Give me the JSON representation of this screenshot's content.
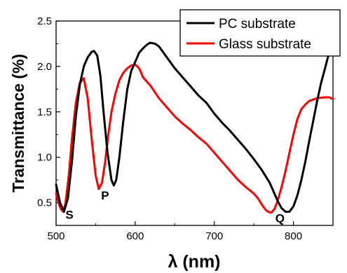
{
  "chart_data": {
    "type": "line",
    "xlabel": "λ (nm)",
    "ylabel": "Transmittance (%)",
    "xlim": [
      500,
      850
    ],
    "ylim": [
      0.25,
      2.5
    ],
    "xticks": [
      "500",
      "600",
      "700",
      "800"
    ],
    "yticks": [
      "0.5",
      "1.0",
      "1.5",
      "2.0",
      "2.5"
    ],
    "legend_position": "top-right",
    "series": [
      {
        "name": "PC substrate",
        "color": "#000000",
        "x": [
          500,
          505,
          510,
          515,
          520,
          525,
          530,
          535,
          540,
          545,
          548,
          552,
          556,
          560,
          565,
          570,
          573,
          576,
          580,
          585,
          590,
          595,
          600,
          605,
          610,
          615,
          619,
          625,
          630,
          640,
          650,
          660,
          670,
          680,
          690,
          700,
          710,
          720,
          730,
          740,
          750,
          760,
          770,
          775,
          780,
          785,
          790,
          795,
          800,
          805,
          810,
          815,
          820,
          825,
          830,
          835,
          840,
          845,
          850
        ],
        "y": [
          0.7,
          0.5,
          0.4,
          0.55,
          0.95,
          1.45,
          1.8,
          2.0,
          2.1,
          2.16,
          2.17,
          2.12,
          1.9,
          1.5,
          1.05,
          0.75,
          0.69,
          0.75,
          1.0,
          1.4,
          1.75,
          1.95,
          2.05,
          2.15,
          2.2,
          2.24,
          2.26,
          2.25,
          2.22,
          2.1,
          1.98,
          1.88,
          1.78,
          1.68,
          1.6,
          1.48,
          1.38,
          1.29,
          1.19,
          1.09,
          0.98,
          0.86,
          0.72,
          0.62,
          0.52,
          0.44,
          0.4,
          0.4,
          0.46,
          0.58,
          0.75,
          0.95,
          1.18,
          1.4,
          1.62,
          1.82,
          1.98,
          2.15,
          2.3
        ]
      },
      {
        "name": "Glass substrate",
        "color": "#ff0000",
        "x": [
          500,
          503,
          506,
          509,
          512,
          516,
          520,
          525,
          530,
          535,
          540,
          545,
          550,
          554,
          558,
          562,
          566,
          570,
          575,
          580,
          585,
          590,
          595,
          600,
          605,
          610,
          620,
          630,
          640,
          650,
          660,
          670,
          680,
          690,
          700,
          710,
          720,
          730,
          740,
          750,
          755,
          760,
          765,
          768,
          772,
          776,
          780,
          785,
          790,
          795,
          800,
          805,
          810,
          815,
          820,
          830,
          840,
          845,
          850
        ],
        "y": [
          0.6,
          0.5,
          0.43,
          0.4,
          0.5,
          0.8,
          1.2,
          1.6,
          1.82,
          1.87,
          1.65,
          1.2,
          0.8,
          0.65,
          0.72,
          0.95,
          1.25,
          1.5,
          1.7,
          1.85,
          1.93,
          1.98,
          2.01,
          2.02,
          1.98,
          1.88,
          1.78,
          1.65,
          1.55,
          1.45,
          1.37,
          1.3,
          1.22,
          1.15,
          1.05,
          0.95,
          0.85,
          0.75,
          0.67,
          0.6,
          0.55,
          0.48,
          0.42,
          0.4,
          0.39,
          0.43,
          0.52,
          0.67,
          0.85,
          1.05,
          1.25,
          1.42,
          1.53,
          1.58,
          1.62,
          1.65,
          1.66,
          1.66,
          1.64
        ]
      }
    ],
    "annotations": [
      {
        "text": "S",
        "x": 517,
        "y": 0.37
      },
      {
        "text": "P",
        "x": 562,
        "y": 0.58
      },
      {
        "text": "Q",
        "x": 783,
        "y": 0.33
      }
    ]
  }
}
